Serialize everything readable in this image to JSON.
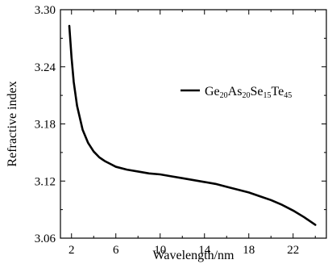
{
  "chart_data": {
    "type": "line",
    "title": "",
    "xlabel": "Wavelength/nm",
    "ylabel": "Refractive index",
    "xlim": [
      1,
      25
    ],
    "ylim": [
      3.06,
      3.3
    ],
    "x_ticks": [
      2,
      6,
      10,
      14,
      18,
      22
    ],
    "x_tick_labels": [
      "2",
      "6",
      "10",
      "14",
      "18",
      "22"
    ],
    "y_ticks": [
      3.06,
      3.12,
      3.18,
      3.24,
      3.3
    ],
    "y_tick_labels": [
      "3.06",
      "3.12",
      "3.18",
      "3.24",
      "3.30"
    ],
    "grid": false,
    "legend_position": "top-right",
    "series": [
      {
        "name": "Ge20As20Se15Te45",
        "name_parts": [
          {
            "t": "Ge",
            "sub": false
          },
          {
            "t": "20",
            "sub": true
          },
          {
            "t": "As",
            "sub": false
          },
          {
            "t": "20",
            "sub": true
          },
          {
            "t": "Se",
            "sub": false
          },
          {
            "t": "15",
            "sub": true
          },
          {
            "t": "Te",
            "sub": false
          },
          {
            "t": "45",
            "sub": true
          }
        ],
        "color": "#000000",
        "x": [
          1.8,
          2.0,
          2.2,
          2.5,
          3.0,
          3.5,
          4.0,
          4.5,
          5.0,
          5.5,
          6.0,
          7.0,
          8.0,
          9.0,
          10.0,
          11.0,
          12.0,
          13.0,
          14.0,
          15.0,
          16.0,
          17.0,
          18.0,
          19.0,
          20.0,
          21.0,
          22.0,
          23.0,
          24.0
        ],
        "y": [
          3.283,
          3.25,
          3.224,
          3.199,
          3.174,
          3.16,
          3.151,
          3.145,
          3.141,
          3.138,
          3.135,
          3.132,
          3.13,
          3.128,
          3.127,
          3.125,
          3.123,
          3.121,
          3.119,
          3.117,
          3.114,
          3.111,
          3.108,
          3.104,
          3.1,
          3.095,
          3.089,
          3.082,
          3.074
        ]
      }
    ]
  }
}
